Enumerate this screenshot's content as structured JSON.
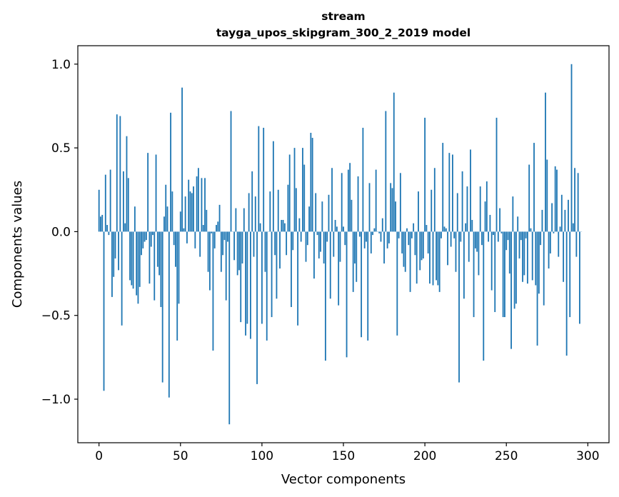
{
  "chart_data": {
    "type": "bar",
    "title": "stream",
    "subtitle": "tayga_upos_skipgram_300_2_2019 model",
    "xlabel": "Vector components",
    "ylabel": "Components values",
    "xlim": [
      -13,
      313
    ],
    "ylim": [
      -1.26,
      1.11
    ],
    "xticks": [
      0,
      50,
      100,
      150,
      200,
      250,
      300
    ],
    "xtick_labels": [
      "0",
      "50",
      "100",
      "150",
      "200",
      "250",
      "300"
    ],
    "yticks": [
      -1.0,
      -0.5,
      0.0,
      0.5,
      1.0
    ],
    "ytick_labels": [
      "−1.0",
      "−0.5",
      "0.0",
      "0.5",
      "1.0"
    ],
    "bar_color": "#1f77b4",
    "values": [
      0.25,
      0.09,
      0.1,
      -0.95,
      0.34,
      0.04,
      -0.02,
      0.37,
      -0.39,
      -0.27,
      -0.16,
      0.7,
      -0.23,
      0.69,
      -0.56,
      0.36,
      0.05,
      0.57,
      0.32,
      -0.29,
      -0.32,
      -0.34,
      0.15,
      -0.38,
      -0.43,
      -0.33,
      -0.14,
      -0.1,
      -0.06,
      -0.05,
      0.47,
      -0.31,
      -0.09,
      -0.02,
      -0.41,
      0.46,
      -0.21,
      -0.26,
      -0.45,
      -0.9,
      0.09,
      0.28,
      0.15,
      -0.99,
      0.71,
      0.24,
      -0.08,
      -0.21,
      -0.65,
      -0.43,
      0.12,
      0.86,
      0.02,
      0.21,
      -0.07,
      0.31,
      0.24,
      0.23,
      0.27,
      -0.1,
      0.33,
      0.38,
      -0.15,
      0.32,
      0.04,
      0.32,
      0.13,
      -0.24,
      -0.35,
      -0.01,
      -0.71,
      -0.1,
      0.04,
      0.06,
      0.16,
      -0.24,
      -0.14,
      -0.05,
      -0.41,
      -0.06,
      -1.15,
      0.72,
      0.0,
      -0.17,
      0.14,
      -0.26,
      -0.23,
      -0.54,
      -0.19,
      0.14,
      -0.62,
      -0.55,
      0.23,
      -0.64,
      0.36,
      -0.15,
      0.21,
      -0.91,
      0.63,
      0.05,
      -0.55,
      0.62,
      -0.24,
      -0.65,
      0.0,
      0.24,
      -0.51,
      0.54,
      -0.14,
      -0.4,
      0.25,
      -0.22,
      0.07,
      0.07,
      0.05,
      -0.14,
      0.28,
      0.46,
      -0.45,
      -0.11,
      0.5,
      0.26,
      -0.56,
      0.08,
      -0.06,
      0.5,
      0.4,
      -0.18,
      -0.08,
      0.15,
      0.59,
      0.56,
      -0.28,
      0.23,
      -0.02,
      -0.16,
      -0.12,
      0.18,
      -0.19,
      -0.77,
      -0.06,
      0.22,
      -0.4,
      0.38,
      -0.15,
      0.07,
      0.03,
      -0.44,
      -0.18,
      0.35,
      0.03,
      -0.08,
      -0.75,
      0.37,
      0.41,
      0.19,
      -0.36,
      -0.19,
      -0.3,
      0.33,
      -0.03,
      -0.63,
      0.62,
      -0.1,
      -0.06,
      -0.65,
      0.29,
      -0.13,
      -0.02,
      0.02,
      0.37,
      0.0,
      -0.01,
      -0.06,
      0.08,
      -0.19,
      0.72,
      -0.1,
      -0.07,
      0.29,
      0.26,
      0.83,
      0.18,
      -0.62,
      -0.04,
      0.35,
      -0.13,
      -0.21,
      -0.24,
      0.02,
      -0.08,
      -0.36,
      -0.04,
      0.05,
      -0.14,
      -0.31,
      0.24,
      -0.23,
      -0.17,
      -0.16,
      0.68,
      0.04,
      -0.13,
      -0.31,
      0.25,
      -0.32,
      0.38,
      -0.29,
      -0.32,
      -0.36,
      -0.04,
      0.53,
      0.03,
      0.02,
      -0.2,
      0.47,
      -0.09,
      0.46,
      -0.04,
      -0.24,
      0.23,
      -0.9,
      -0.06,
      0.36,
      -0.4,
      0.05,
      0.27,
      -0.18,
      0.49,
      0.07,
      -0.51,
      -0.1,
      -0.12,
      -0.26,
      0.27,
      -0.08,
      -0.77,
      0.18,
      0.3,
      -0.06,
      0.1,
      -0.35,
      -0.02,
      -0.48,
      0.68,
      -0.06,
      0.14,
      -0.01,
      -0.51,
      -0.51,
      -0.11,
      -0.05,
      -0.25,
      -0.7,
      0.21,
      -0.46,
      -0.43,
      0.09,
      -0.16,
      -0.05,
      -0.3,
      -0.26,
      -0.04,
      -0.31,
      0.4,
      0.02,
      -0.29,
      0.53,
      -0.32,
      -0.68,
      -0.37,
      -0.08,
      0.13,
      -0.44,
      0.83,
      0.43,
      -0.22,
      -0.13,
      0.17,
      -0.01,
      0.39,
      0.37,
      -0.15,
      0.03,
      0.22,
      -0.3,
      0.13,
      -0.74,
      0.19,
      -0.51,
      1.0,
      0.05,
      0.38,
      -0.15,
      0.35,
      -0.55,
      0.0
    ]
  }
}
